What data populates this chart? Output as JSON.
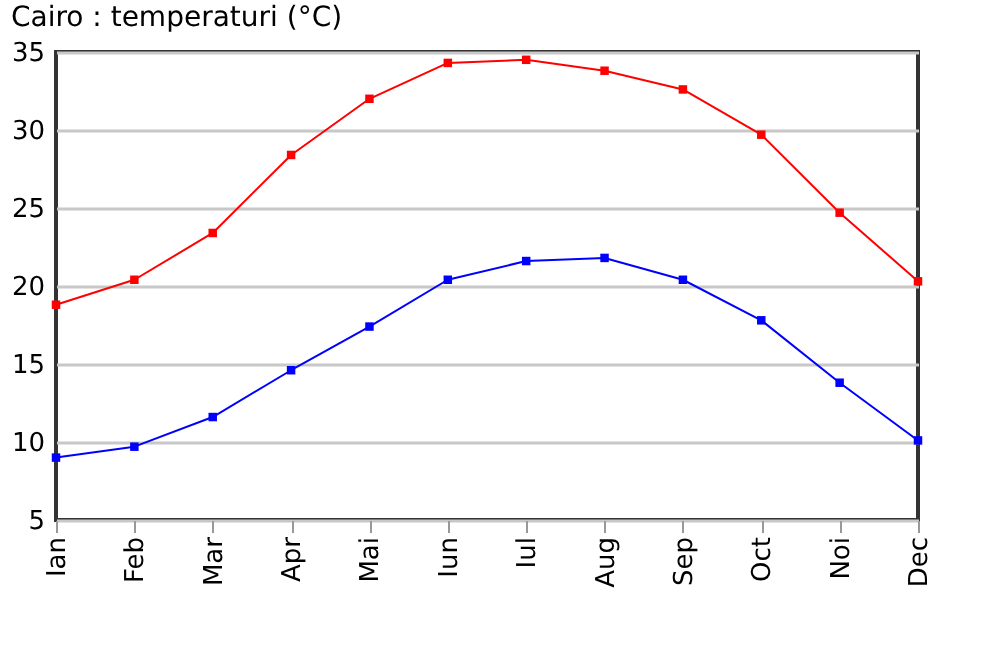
{
  "chart_data": {
    "type": "line",
    "title": "Cairo : temperaturi (°C)",
    "categories": [
      "Ian",
      "Feb",
      "Mar",
      "Apr",
      "Mai",
      "Iun",
      "Iul",
      "Aug",
      "Sep",
      "Oct",
      "Noi",
      "Dec"
    ],
    "series": [
      {
        "color": "#ff0000",
        "values": [
          18.8,
          20.4,
          23.4,
          28.4,
          32.0,
          34.3,
          34.5,
          33.8,
          32.6,
          29.7,
          24.7,
          20.3
        ]
      },
      {
        "color": "#0000ff",
        "values": [
          9.0,
          9.7,
          11.6,
          14.6,
          17.4,
          20.4,
          21.6,
          21.8,
          20.4,
          17.8,
          13.8,
          10.1
        ]
      }
    ],
    "ylim": [
      5,
      35
    ],
    "yticks": [
      5,
      10,
      15,
      20,
      25,
      30,
      35
    ],
    "grid": "y",
    "marker": "square",
    "line_style": "solid",
    "legend": false
  }
}
